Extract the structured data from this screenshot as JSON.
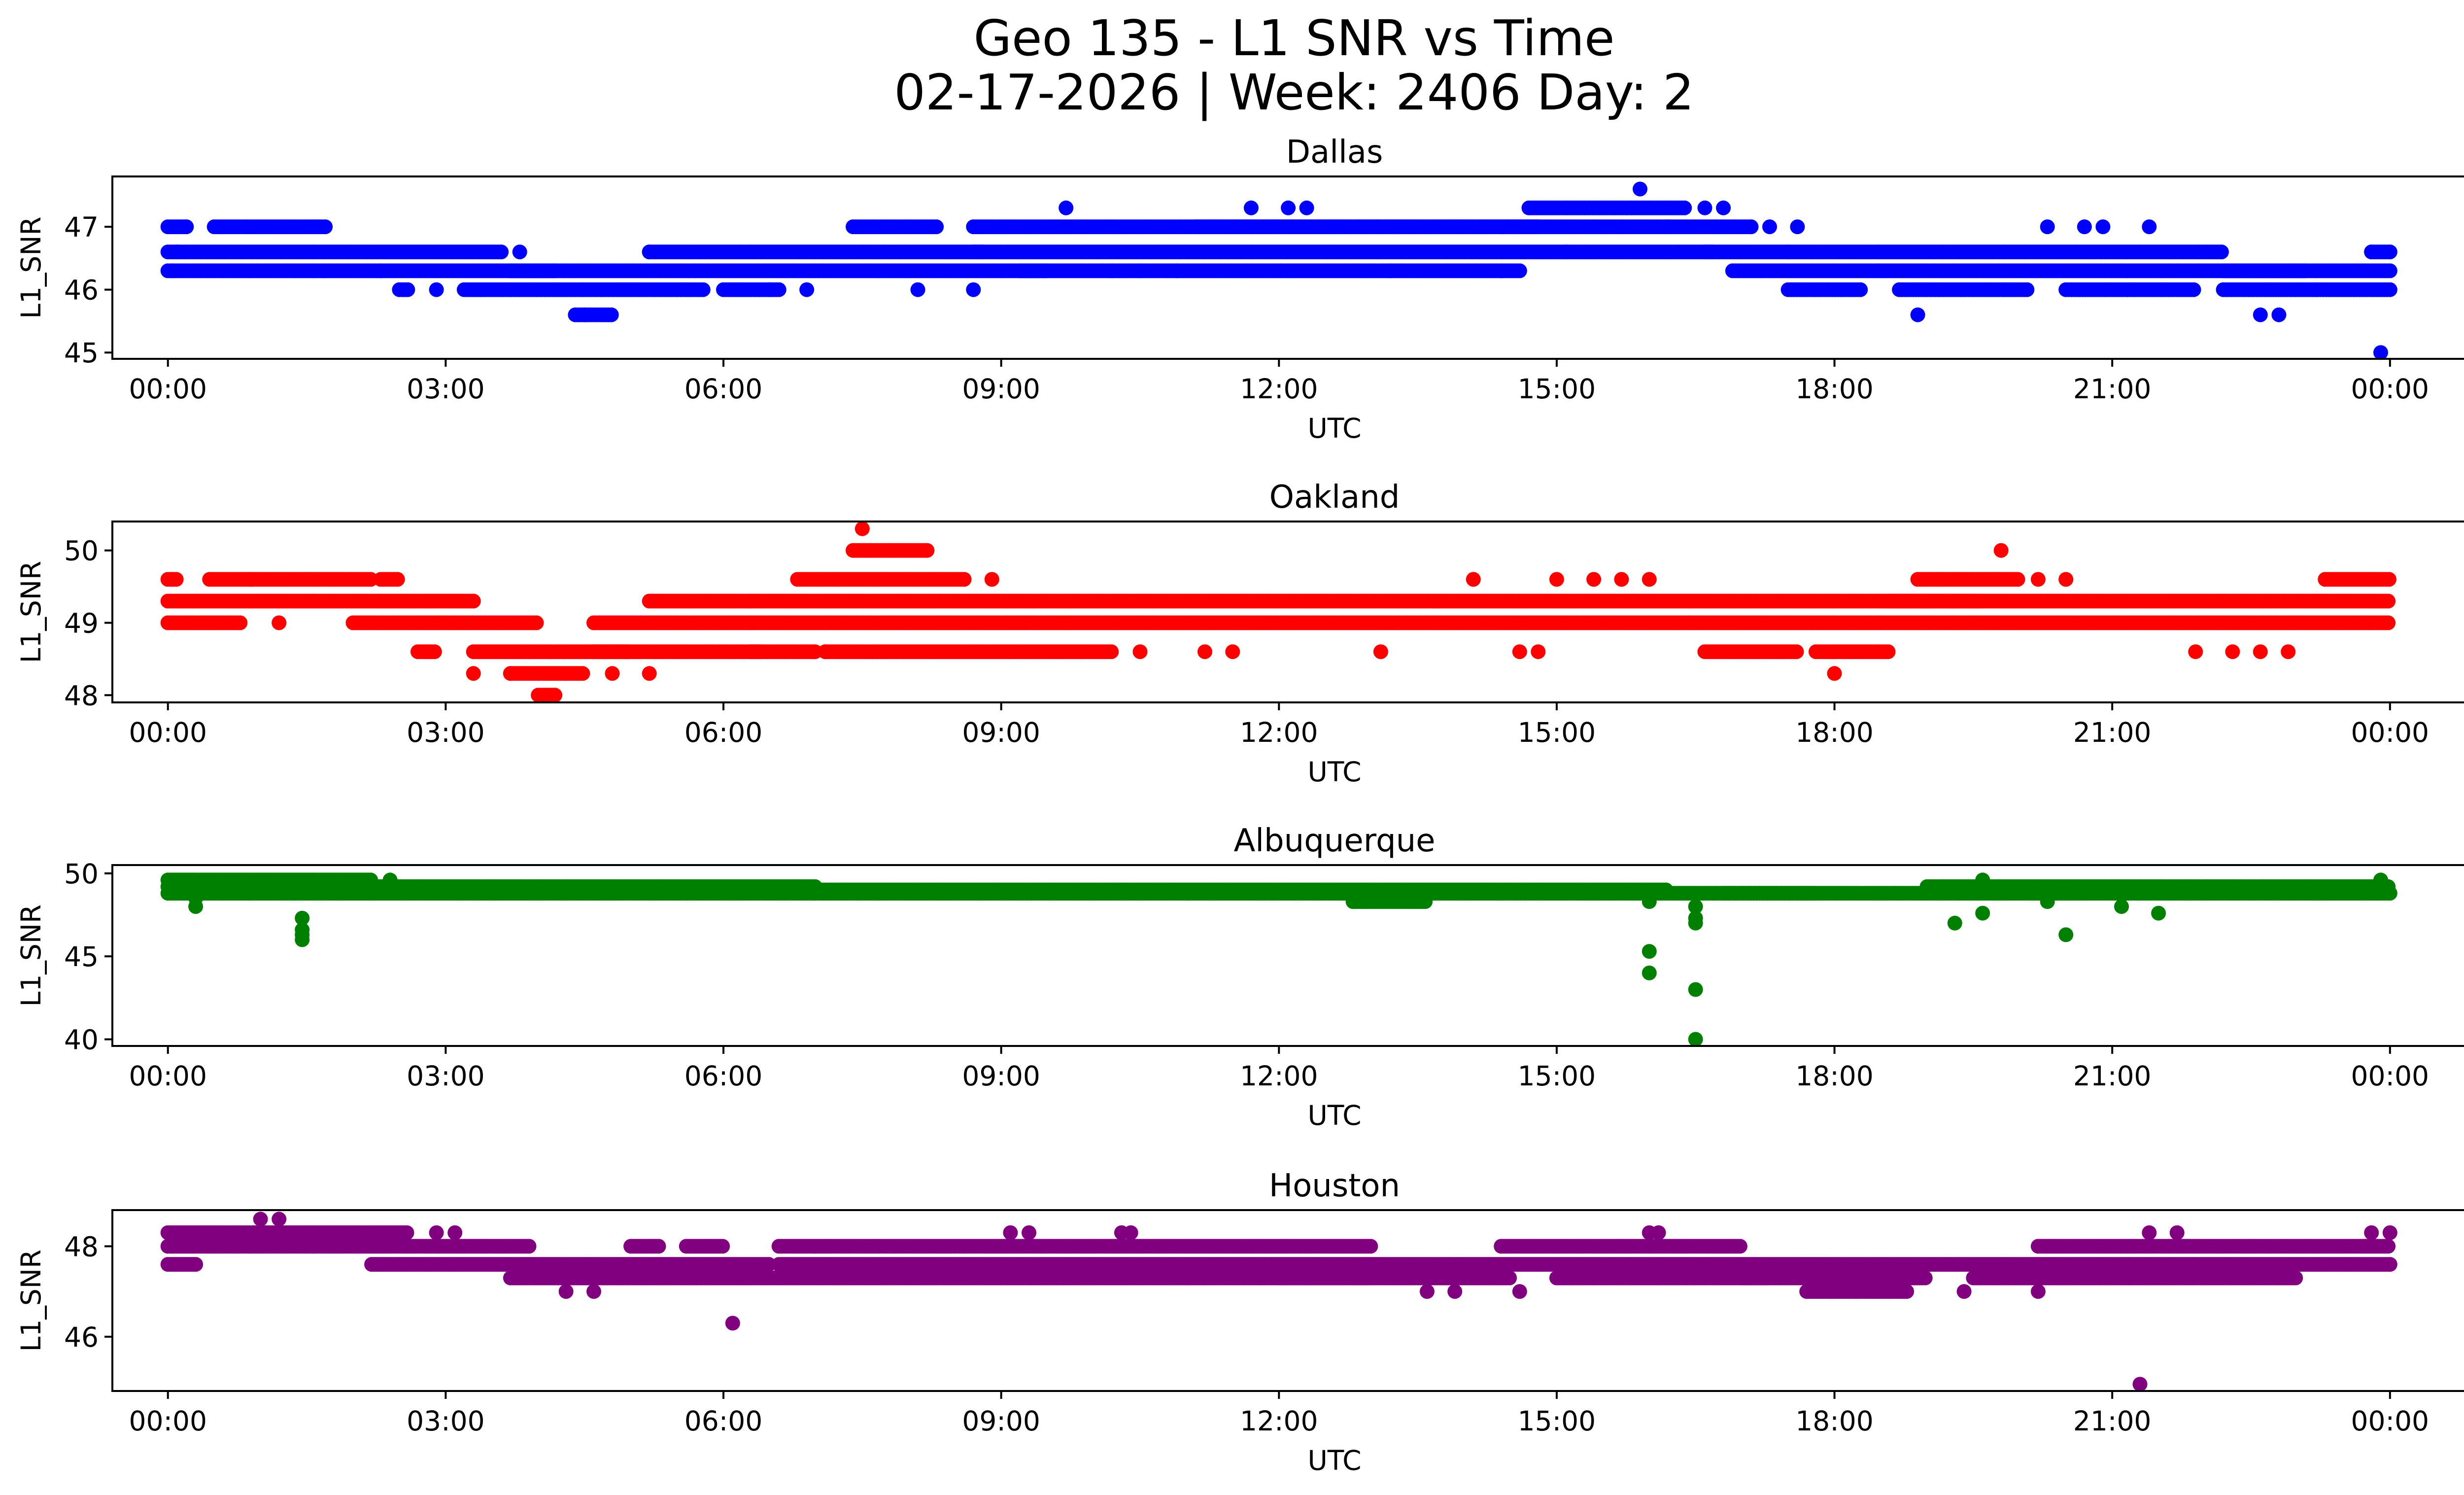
{
  "figure": {
    "title_line1": "Geo 135 - L1 SNR vs Time",
    "title_line2": "02-17-2026 | Week: 2406 Day: 2"
  },
  "chart_data": [
    {
      "type": "scatter",
      "title": "Dallas",
      "xlabel": "UTC",
      "ylabel": "L1_SNR",
      "color": "#0000ff",
      "xlim": [
        -0.6,
        25.8
      ],
      "ylim": [
        44.9,
        47.8
      ],
      "yticks": [
        45,
        46,
        47
      ],
      "xticks": [
        "00:00",
        "03:00",
        "06:00",
        "09:00",
        "12:00",
        "15:00",
        "18:00",
        "21:00",
        "00:00"
      ],
      "segments": [
        [
          0.0,
          1.7,
          46.3
        ],
        [
          0.0,
          3.6,
          46.6
        ],
        [
          0.0,
          0.2,
          47.0
        ],
        [
          0.5,
          1.7,
          47.0
        ],
        [
          1.7,
          2.3,
          46.3
        ],
        [
          2.3,
          4.2,
          46.3
        ],
        [
          2.5,
          2.6,
          46.0
        ],
        [
          3.2,
          5.8,
          46.0
        ],
        [
          4.4,
          4.8,
          45.6
        ],
        [
          3.7,
          5.7,
          46.3
        ],
        [
          5.2,
          8.8,
          46.6
        ],
        [
          5.7,
          9.5,
          46.3
        ],
        [
          6.0,
          6.6,
          46.0
        ],
        [
          7.4,
          8.3,
          47.0
        ],
        [
          8.7,
          14.8,
          47.0
        ],
        [
          8.7,
          16.7,
          46.6
        ],
        [
          9.2,
          14.6,
          46.3
        ],
        [
          11.1,
          16.2,
          47.0
        ],
        [
          14.7,
          16.4,
          47.3
        ],
        [
          16.2,
          17.1,
          47.0
        ],
        [
          16.6,
          17.5,
          46.6
        ],
        [
          16.9,
          23.1,
          46.3
        ],
        [
          17.5,
          22.2,
          46.6
        ],
        [
          17.5,
          18.3,
          46.0
        ],
        [
          18.7,
          20.1,
          46.0
        ],
        [
          20.5,
          21.9,
          46.0
        ],
        [
          22.2,
          24.0,
          46.0
        ],
        [
          22.2,
          24.0,
          46.3
        ],
        [
          23.8,
          24.0,
          46.6
        ]
      ],
      "points": [
        [
          0.05,
          46.3
        ],
        [
          0.1,
          46.6
        ],
        [
          0.2,
          47.0
        ],
        [
          2.9,
          46.0
        ],
        [
          3.8,
          46.6
        ],
        [
          4.5,
          45.6
        ],
        [
          5.2,
          46.6
        ],
        [
          6.5,
          46.0
        ],
        [
          6.9,
          46.0
        ],
        [
          8.1,
          46.0
        ],
        [
          8.7,
          46.0
        ],
        [
          9.7,
          47.3
        ],
        [
          10.2,
          46.3
        ],
        [
          10.5,
          46.3
        ],
        [
          10.9,
          46.3
        ],
        [
          11.7,
          47.3
        ],
        [
          12.1,
          47.3
        ],
        [
          12.3,
          47.3
        ],
        [
          13.2,
          46.3
        ],
        [
          14.4,
          46.3
        ],
        [
          15.1,
          46.6
        ],
        [
          15.9,
          47.6
        ],
        [
          16.6,
          47.3
        ],
        [
          16.8,
          47.3
        ],
        [
          17.3,
          47.0
        ],
        [
          17.6,
          47.0
        ],
        [
          18.9,
          45.6
        ],
        [
          20.3,
          47.0
        ],
        [
          20.7,
          47.0
        ],
        [
          20.9,
          47.0
        ],
        [
          21.4,
          47.0
        ],
        [
          22.6,
          45.6
        ],
        [
          22.8,
          45.6
        ],
        [
          23.8,
          46.6
        ],
        [
          23.9,
          45.0
        ],
        [
          24.0,
          46.6
        ]
      ]
    },
    {
      "type": "scatter",
      "title": "Oakland",
      "xlabel": "UTC",
      "ylabel": "L1_SNR",
      "color": "#ff0000",
      "xlim": [
        -0.6,
        25.8
      ],
      "ylim": [
        47.9,
        50.4
      ],
      "yticks": [
        48,
        49,
        50
      ],
      "xticks": [
        "00:00",
        "03:00",
        "06:00",
        "09:00",
        "12:00",
        "15:00",
        "18:00",
        "21:00",
        "00:00"
      ],
      "segments": [
        [
          0.0,
          3.3,
          49.3
        ],
        [
          0.0,
          0.8,
          49.0
        ],
        [
          0.0,
          0.1,
          49.6
        ],
        [
          0.45,
          0.9,
          49.6
        ],
        [
          0.9,
          2.2,
          49.6
        ],
        [
          2.0,
          4.0,
          49.0
        ],
        [
          2.3,
          2.5,
          49.6
        ],
        [
          2.7,
          2.9,
          48.6
        ],
        [
          3.3,
          5.0,
          48.6
        ],
        [
          3.7,
          4.5,
          48.3
        ],
        [
          4.0,
          4.2,
          48.0
        ],
        [
          4.6,
          24.0,
          49.0
        ],
        [
          4.6,
          6.4,
          48.6
        ],
        [
          5.2,
          24.0,
          49.3
        ],
        [
          6.3,
          7.0,
          48.6
        ],
        [
          6.8,
          8.6,
          49.6
        ],
        [
          7.1,
          10.2,
          48.6
        ],
        [
          7.4,
          7.6,
          50.0
        ],
        [
          7.6,
          8.2,
          50.0
        ],
        [
          16.6,
          17.6,
          48.6
        ],
        [
          17.8,
          18.6,
          48.6
        ],
        [
          18.6,
          19.6,
          49.3
        ],
        [
          18.9,
          20.0,
          49.6
        ],
        [
          23.3,
          24.0,
          49.6
        ]
      ],
      "points": [
        [
          0.05,
          49.6
        ],
        [
          1.2,
          49.0
        ],
        [
          3.3,
          48.3
        ],
        [
          3.7,
          48.3
        ],
        [
          4.8,
          48.3
        ],
        [
          5.2,
          48.3
        ],
        [
          7.5,
          50.3
        ],
        [
          7.1,
          48.6
        ],
        [
          8.9,
          49.6
        ],
        [
          10.5,
          48.6
        ],
        [
          11.2,
          48.6
        ],
        [
          11.5,
          48.6
        ],
        [
          13.1,
          48.6
        ],
        [
          14.1,
          49.6
        ],
        [
          14.6,
          48.6
        ],
        [
          14.8,
          48.6
        ],
        [
          15.0,
          49.6
        ],
        [
          15.4,
          49.6
        ],
        [
          15.7,
          49.6
        ],
        [
          16.0,
          49.6
        ],
        [
          18.0,
          48.3
        ],
        [
          19.8,
          50.0
        ],
        [
          20.2,
          49.6
        ],
        [
          20.5,
          49.6
        ],
        [
          21.9,
          48.6
        ],
        [
          22.3,
          48.6
        ],
        [
          22.6,
          48.6
        ],
        [
          22.9,
          48.6
        ]
      ]
    },
    {
      "type": "scatter",
      "title": "Albuquerque",
      "xlabel": "UTC",
      "ylabel": "L1_SNR",
      "color": "#008000",
      "xlim": [
        -0.6,
        25.8
      ],
      "ylim": [
        39.6,
        50.5
      ],
      "yticks": [
        40,
        45,
        50
      ],
      "xticks": [
        "00:00",
        "03:00",
        "06:00",
        "09:00",
        "12:00",
        "15:00",
        "18:00",
        "21:00",
        "00:00"
      ],
      "segments": [
        [
          0.0,
          2.2,
          49.6
        ],
        [
          0.0,
          7.0,
          49.2
        ],
        [
          0.0,
          24.0,
          48.8
        ],
        [
          0.3,
          1.6,
          49.4
        ],
        [
          7.0,
          16.2,
          49.0
        ],
        [
          12.8,
          13.6,
          48.3
        ],
        [
          16.8,
          17.8,
          48.8
        ],
        [
          19.0,
          24.0,
          49.2
        ]
      ],
      "points": [
        [
          0.3,
          48.0
        ],
        [
          0.3,
          48.5
        ],
        [
          1.45,
          47.3
        ],
        [
          1.45,
          46.6
        ],
        [
          1.45,
          46.3
        ],
        [
          1.45,
          46.0
        ],
        [
          2.4,
          49.6
        ],
        [
          16.0,
          45.3
        ],
        [
          16.0,
          44.0
        ],
        [
          16.0,
          48.3
        ],
        [
          16.5,
          48.0
        ],
        [
          16.5,
          47.3
        ],
        [
          16.5,
          47.0
        ],
        [
          16.5,
          43.0
        ],
        [
          16.5,
          40.0
        ],
        [
          19.3,
          47.0
        ],
        [
          19.6,
          47.6
        ],
        [
          19.6,
          49.6
        ],
        [
          20.3,
          48.3
        ],
        [
          20.5,
          46.3
        ],
        [
          21.1,
          48.0
        ],
        [
          21.5,
          47.6
        ],
        [
          23.9,
          49.6
        ]
      ]
    },
    {
      "type": "scatter",
      "title": "Houston",
      "xlabel": "UTC",
      "ylabel": "L1_SNR",
      "color": "#800080",
      "xlim": [
        -0.6,
        25.8
      ],
      "ylim": [
        44.8,
        48.8
      ],
      "yticks": [
        46,
        48
      ],
      "xticks": [
        "00:00",
        "03:00",
        "06:00",
        "09:00",
        "12:00",
        "15:00",
        "18:00",
        "21:00",
        "00:00"
      ],
      "segments": [
        [
          0.0,
          2.6,
          48.3
        ],
        [
          0.0,
          3.9,
          48.0
        ],
        [
          0.0,
          0.3,
          47.6
        ],
        [
          2.2,
          6.5,
          47.6
        ],
        [
          3.7,
          7.2,
          47.3
        ],
        [
          5.0,
          5.3,
          48.0
        ],
        [
          5.6,
          6.0,
          48.0
        ],
        [
          6.6,
          13.0,
          48.0
        ],
        [
          6.6,
          24.0,
          47.6
        ],
        [
          7.2,
          13.0,
          47.3
        ],
        [
          12.0,
          14.5,
          47.3
        ],
        [
          14.4,
          17.0,
          48.0
        ],
        [
          15.0,
          17.3,
          47.3
        ],
        [
          17.0,
          19.0,
          47.3
        ],
        [
          17.7,
          18.8,
          47.0
        ],
        [
          20.2,
          24.0,
          48.0
        ],
        [
          19.5,
          23.0,
          47.3
        ]
      ],
      "points": [
        [
          0.05,
          48.0
        ],
        [
          1.0,
          48.6
        ],
        [
          1.2,
          48.6
        ],
        [
          2.9,
          48.3
        ],
        [
          3.1,
          48.3
        ],
        [
          4.3,
          47.0
        ],
        [
          4.6,
          47.0
        ],
        [
          6.1,
          46.3
        ],
        [
          9.1,
          48.3
        ],
        [
          9.3,
          48.3
        ],
        [
          10.3,
          48.3
        ],
        [
          10.4,
          48.3
        ],
        [
          11.2,
          47.3
        ],
        [
          11.8,
          47.3
        ],
        [
          12.6,
          47.3
        ],
        [
          13.6,
          47.0
        ],
        [
          13.9,
          47.0
        ],
        [
          14.6,
          47.0
        ],
        [
          16.0,
          48.3
        ],
        [
          16.1,
          48.3
        ],
        [
          19.4,
          47.0
        ],
        [
          20.2,
          47.0
        ],
        [
          21.3,
          44.95
        ],
        [
          21.4,
          48.3
        ],
        [
          21.7,
          48.3
        ],
        [
          23.8,
          48.3
        ],
        [
          24.0,
          48.3
        ]
      ]
    }
  ]
}
